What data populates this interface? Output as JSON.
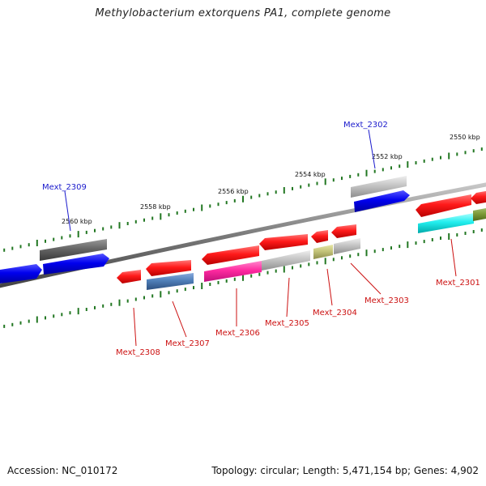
{
  "title": "Methylobacterium extorquens PA1, complete genome",
  "footer": {
    "accession": "Accession: NC_010172",
    "summary": "Topology: circular; Length: 5,471,154 bp; Genes: 4,902"
  },
  "colors": {
    "backbone": "#7a7a7a",
    "tick": "#227722",
    "label_top_strand": "#1a1acc",
    "label_bottom_strand": "#cc1111"
  },
  "scale_labels": [
    "2550 kbp",
    "2552 kbp",
    "2554 kbp",
    "2556 kbp",
    "2558 kbp",
    "2560 kbp"
  ],
  "genes_top_labels": [
    "Mext_2302",
    "Mext_2309"
  ],
  "genes_bottom_labels": [
    "Mext_2301",
    "Mext_2303",
    "Mext_2304",
    "Mext_2305",
    "Mext_2306",
    "Mext_2307",
    "Mext_2308"
  ]
}
